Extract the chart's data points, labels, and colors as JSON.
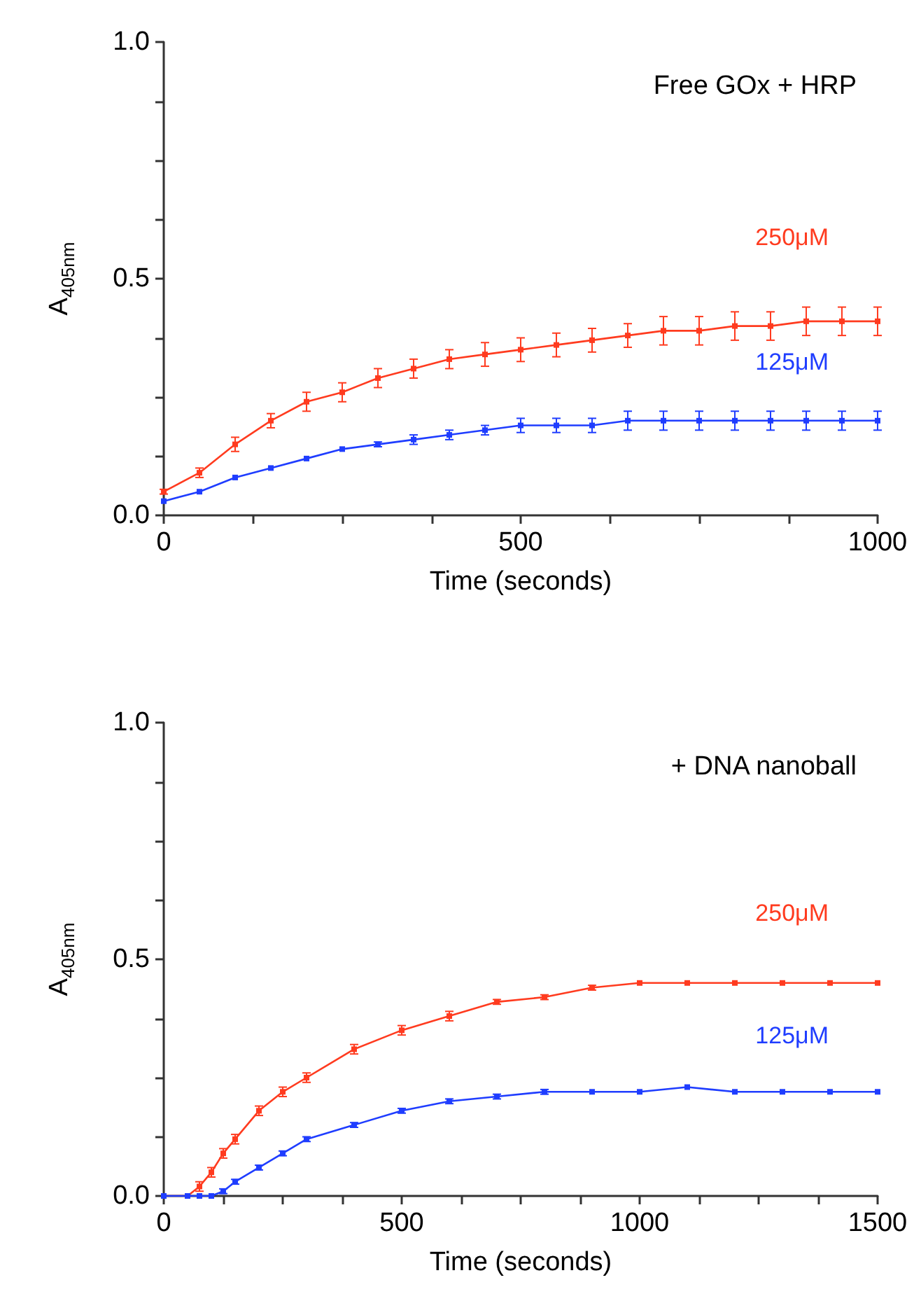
{
  "chart_data": [
    {
      "type": "line",
      "annotations": [
        "Free GOx + HRP"
      ],
      "xlabel": "Time (seconds)",
      "ylabel": "A$_{405nm}$",
      "x": [
        0,
        50,
        100,
        150,
        200,
        250,
        300,
        350,
        400,
        450,
        500,
        550,
        600,
        650,
        700,
        750,
        800,
        850,
        900,
        950,
        1000
      ],
      "series": [
        {
          "name": "250μM",
          "color": "#ff3b1f",
          "values": [
            0.05,
            0.09,
            0.15,
            0.2,
            0.24,
            0.26,
            0.29,
            0.31,
            0.33,
            0.34,
            0.35,
            0.36,
            0.37,
            0.38,
            0.39,
            0.39,
            0.4,
            0.4,
            0.41,
            0.41,
            0.41
          ],
          "errors": [
            0.005,
            0.01,
            0.015,
            0.015,
            0.02,
            0.02,
            0.02,
            0.02,
            0.02,
            0.025,
            0.025,
            0.025,
            0.025,
            0.025,
            0.03,
            0.03,
            0.03,
            0.03,
            0.03,
            0.03,
            0.03
          ]
        },
        {
          "name": "125μM",
          "color": "#1f3dff",
          "values": [
            0.03,
            0.05,
            0.08,
            0.1,
            0.12,
            0.14,
            0.15,
            0.16,
            0.17,
            0.18,
            0.19,
            0.19,
            0.19,
            0.2,
            0.2,
            0.2,
            0.2,
            0.2,
            0.2,
            0.2,
            0.2
          ],
          "errors": [
            null,
            null,
            null,
            null,
            null,
            null,
            0.005,
            0.01,
            0.01,
            0.01,
            0.015,
            0.015,
            0.015,
            0.02,
            0.02,
            0.02,
            0.02,
            0.02,
            0.02,
            0.02,
            0.02
          ]
        }
      ],
      "xlim": [
        0,
        1000
      ],
      "xticks": [
        {
          "value": 0,
          "label": "0"
        },
        {
          "value": 125,
          "label": null
        },
        {
          "value": 250,
          "label": null
        },
        {
          "value": 375,
          "label": null
        },
        {
          "value": 500,
          "label": "500"
        },
        {
          "value": 625,
          "label": null
        },
        {
          "value": 750,
          "label": null
        },
        {
          "value": 875,
          "label": null
        },
        {
          "value": 1000,
          "label": "1000"
        }
      ],
      "ylim": [
        0,
        1
      ],
      "yticks": [
        {
          "value": 0,
          "label": "0.0"
        },
        {
          "value": 0.125,
          "label": null
        },
        {
          "value": 0.25,
          "label": null
        },
        {
          "value": 0.375,
          "label": null
        },
        {
          "value": 0.5,
          "label": "0.5"
        },
        {
          "value": 0.625,
          "label": null
        },
        {
          "value": 0.75,
          "label": null
        },
        {
          "value": 0.875,
          "label": null
        },
        {
          "value": 1,
          "label": "1.0"
        }
      ],
      "grid": false,
      "legend": false,
      "marker": "square",
      "line_style": "solid"
    },
    {
      "type": "line",
      "annotations": [
        "+ DNA nanoball"
      ],
      "xlabel": "Time (seconds)",
      "ylabel": "A$_{405nm}$",
      "x": [
        0,
        50,
        75,
        100,
        125,
        150,
        200,
        250,
        300,
        400,
        500,
        600,
        700,
        800,
        900,
        1000,
        1100,
        1200,
        1300,
        1400,
        1500
      ],
      "series": [
        {
          "name": "250μM",
          "color": "#ff3b1f",
          "values": [
            0,
            0,
            0.02,
            0.05,
            0.09,
            0.12,
            0.18,
            0.22,
            0.25,
            0.31,
            0.35,
            0.38,
            0.41,
            0.42,
            0.44,
            0.45,
            0.45,
            0.45,
            0.45,
            0.45,
            0.45
          ],
          "errors": [
            null,
            null,
            0.01,
            0.01,
            0.01,
            0.01,
            0.01,
            0.01,
            0.01,
            0.01,
            0.01,
            0.01,
            0.005,
            0.005,
            0.005,
            null,
            null,
            null,
            null,
            null,
            null
          ]
        },
        {
          "name": "125μM",
          "color": "#1f3dff",
          "values": [
            0,
            0,
            0,
            0,
            0.01,
            0.03,
            0.06,
            0.09,
            0.12,
            0.15,
            0.18,
            0.2,
            0.21,
            0.22,
            0.22,
            0.22,
            0.23,
            0.22,
            0.22,
            0.22,
            0.22
          ],
          "errors": [
            null,
            null,
            null,
            null,
            0.005,
            0.005,
            0.005,
            0.005,
            0.005,
            0.005,
            0.005,
            0.005,
            0.005,
            0.005,
            null,
            null,
            null,
            null,
            null,
            null,
            null
          ]
        }
      ],
      "xlim": [
        0,
        1500
      ],
      "xticks": [
        {
          "value": 0,
          "label": "0"
        },
        {
          "value": 125,
          "label": null
        },
        {
          "value": 250,
          "label": null
        },
        {
          "value": 375,
          "label": null
        },
        {
          "value": 500,
          "label": "500"
        },
        {
          "value": 625,
          "label": null
        },
        {
          "value": 750,
          "label": null
        },
        {
          "value": 875,
          "label": null
        },
        {
          "value": 1000,
          "label": "1000"
        },
        {
          "value": 1125,
          "label": null
        },
        {
          "value": 1250,
          "label": null
        },
        {
          "value": 1375,
          "label": null
        },
        {
          "value": 1500,
          "label": "1500"
        }
      ],
      "ylim": [
        0,
        1
      ],
      "yticks": [
        {
          "value": 0,
          "label": "0.0"
        },
        {
          "value": 0.125,
          "label": null
        },
        {
          "value": 0.25,
          "label": null
        },
        {
          "value": 0.375,
          "label": null
        },
        {
          "value": 0.5,
          "label": "0.5"
        },
        {
          "value": 0.625,
          "label": null
        },
        {
          "value": 0.75,
          "label": null
        },
        {
          "value": 0.875,
          "label": null
        },
        {
          "value": 1,
          "label": "1.0"
        }
      ],
      "grid": false,
      "legend": false,
      "marker": "square",
      "line_style": "solid"
    }
  ]
}
